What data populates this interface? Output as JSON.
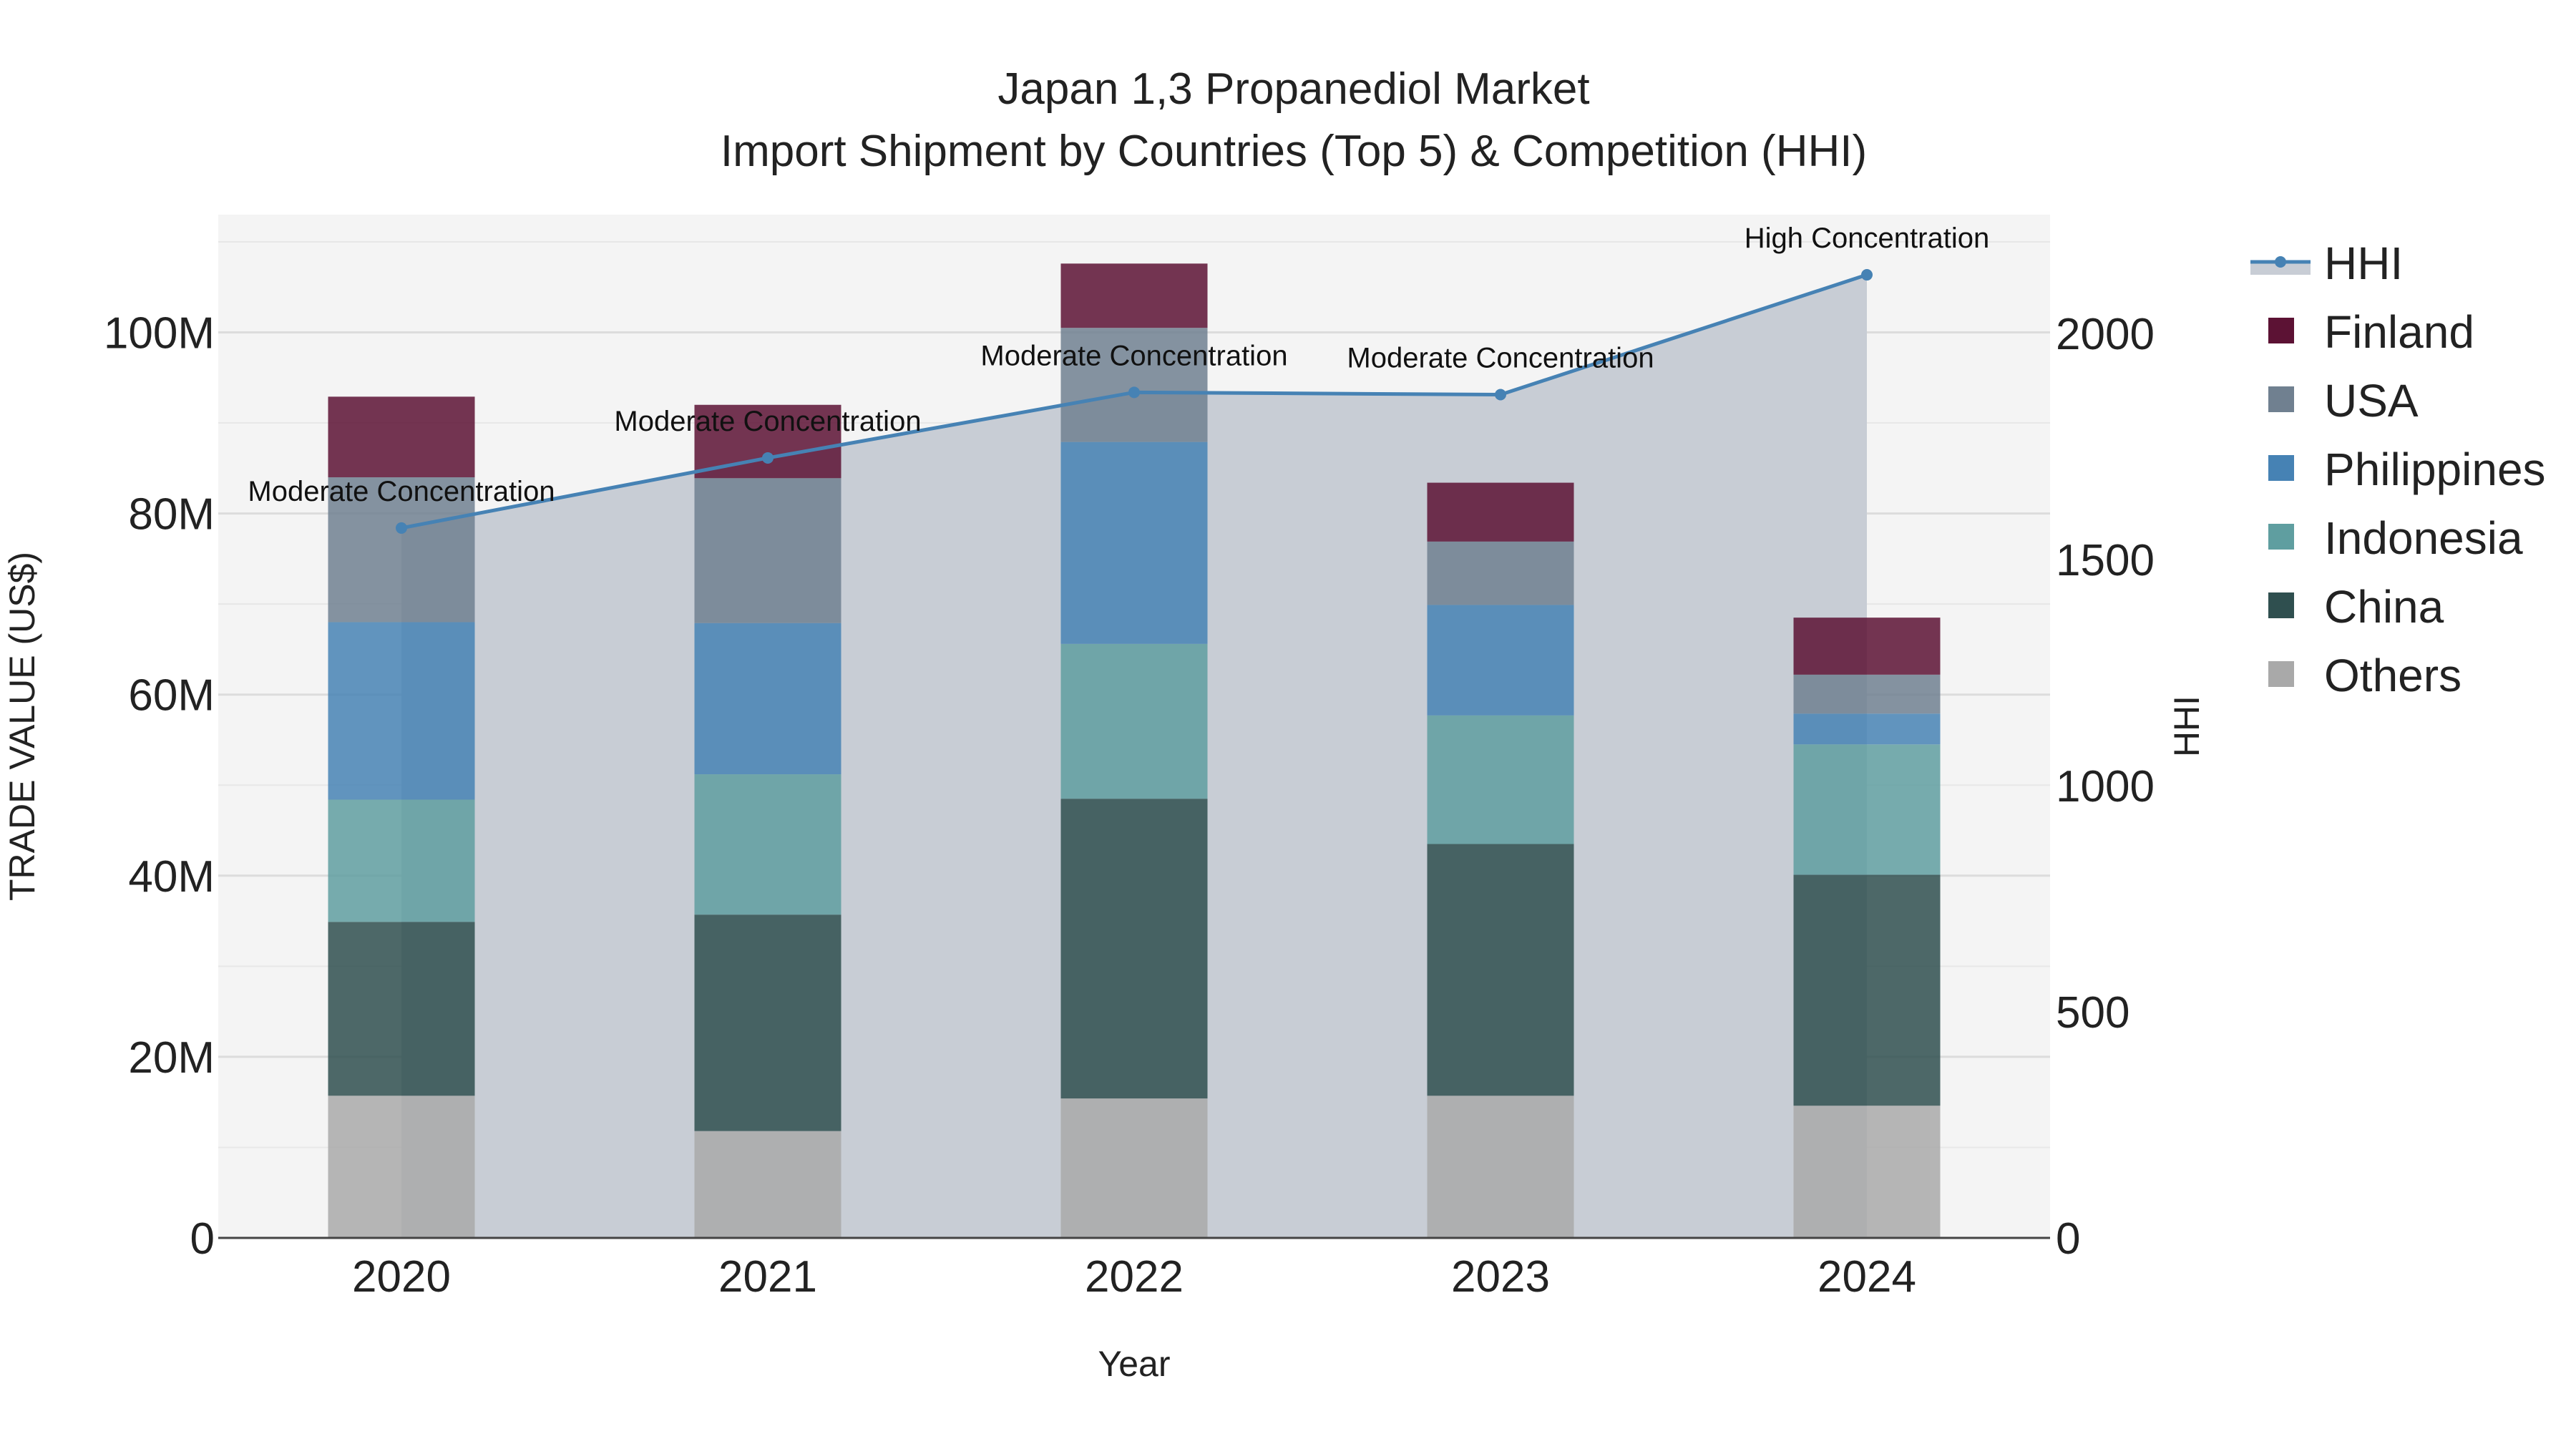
{
  "chart_data": {
    "type": "bar",
    "title_line1": "Japan 1,3 Propanediol Market",
    "title_line2": "Import Shipment by Countries (Top 5) & Competition (HHI)",
    "xlabel": "Year",
    "ylabel": "TRADE VALUE (US$)",
    "y2label": "HHI",
    "categories": [
      "2020",
      "2021",
      "2022",
      "2023",
      "2024"
    ],
    "ylim": [
      0,
      113
    ],
    "y2lim": [
      0,
      2263
    ],
    "y_ticks": [
      {
        "value": 0,
        "label": "0"
      },
      {
        "value": 20,
        "label": "20M"
      },
      {
        "value": 40,
        "label": "40M"
      },
      {
        "value": 60,
        "label": "60M"
      },
      {
        "value": 80,
        "label": "80M"
      },
      {
        "value": 100,
        "label": "100M"
      }
    ],
    "y2_ticks": [
      {
        "value": 0,
        "label": "0"
      },
      {
        "value": 500,
        "label": "500"
      },
      {
        "value": 1000,
        "label": "1000"
      },
      {
        "value": 1500,
        "label": "1500"
      },
      {
        "value": 2000,
        "label": "2000"
      }
    ],
    "series": [
      {
        "name": "Others",
        "color": "#a9a9a9",
        "values": [
          15.7,
          11.8,
          15.4,
          15.7,
          14.6
        ]
      },
      {
        "name": "China",
        "color": "#2f4f4f",
        "values": [
          19.2,
          23.9,
          33.1,
          27.8,
          25.5
        ]
      },
      {
        "name": "Indonesia",
        "color": "#5f9ea0",
        "values": [
          13.5,
          15.5,
          17.1,
          14.2,
          14.4
        ]
      },
      {
        "name": "Philippines",
        "color": "#4682b4",
        "values": [
          19.6,
          16.7,
          22.3,
          12.2,
          3.4
        ]
      },
      {
        "name": "USA",
        "color": "#708090",
        "values": [
          16.0,
          16.0,
          12.6,
          7.0,
          4.3
        ]
      },
      {
        "name": "Finland",
        "color": "#5c1234",
        "values": [
          8.9,
          8.1,
          7.1,
          6.5,
          6.3
        ]
      }
    ],
    "hhi": {
      "name": "HHI",
      "color": "#4682b4",
      "fill_color": "#c8cdd5",
      "values": [
        1570,
        1725,
        1870,
        1865,
        2130
      ],
      "annotations": [
        "Moderate Concentration",
        "Moderate Concentration",
        "Moderate Concentration",
        "Moderate Concentration",
        "High Concentration"
      ]
    },
    "legend_order": [
      "HHI",
      "Finland",
      "USA",
      "Philippines",
      "Indonesia",
      "China",
      "Others"
    ],
    "legend_position": "right"
  }
}
